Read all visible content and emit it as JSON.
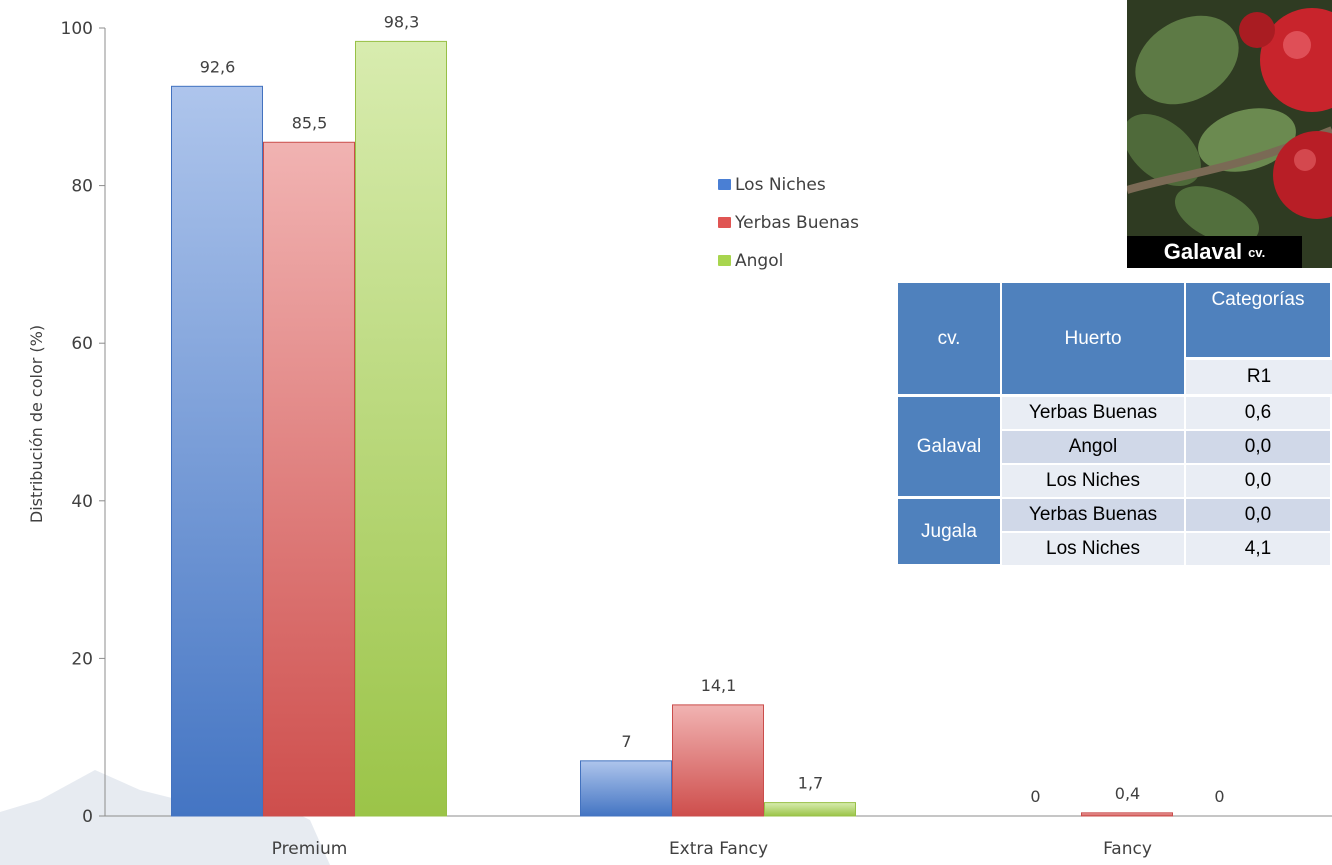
{
  "chart_data": {
    "type": "bar",
    "categories": [
      "Premium",
      "Extra Fancy",
      "Fancy"
    ],
    "series": [
      {
        "name": "Los Niches",
        "color": "#4a7fd4",
        "values": [
          92.6,
          7,
          0
        ],
        "labels": [
          "92,6",
          "7",
          "0"
        ]
      },
      {
        "name": "Yerbas Buenas",
        "color": "#e05553",
        "values": [
          85.5,
          14.1,
          0.4
        ],
        "labels": [
          "85,5",
          "14,1",
          "0,4"
        ]
      },
      {
        "name": "Angol",
        "color": "#a8d54e",
        "values": [
          98.3,
          1.7,
          0
        ],
        "labels": [
          "98,3",
          "1,7",
          "0"
        ]
      }
    ],
    "ylabel": "Distribución de color (%)",
    "ylim": [
      0,
      100
    ],
    "yticks": [
      0,
      20,
      40,
      60,
      80,
      100
    ],
    "grid": false,
    "legend_position": "center-right"
  },
  "photo": {
    "caption_main": "Galaval",
    "caption_suffix": "cv.",
    "subject": "red-apples-on-branch"
  },
  "table": {
    "col_cv": "cv.",
    "col_huerto": "Huerto",
    "col_categorias": "Categorías",
    "col_r1": "R1",
    "groups": [
      {
        "cv": "Galaval",
        "rows": [
          {
            "huerto": "Yerbas Buenas",
            "r1": "0,6"
          },
          {
            "huerto": "Angol",
            "r1": "0,0"
          },
          {
            "huerto": "Los Niches",
            "r1": "0,0"
          }
        ]
      },
      {
        "cv": "Jugala",
        "rows": [
          {
            "huerto": "Yerbas Buenas",
            "r1": "0,0"
          },
          {
            "huerto": "Los Niches",
            "r1": "4,1"
          }
        ]
      }
    ]
  }
}
